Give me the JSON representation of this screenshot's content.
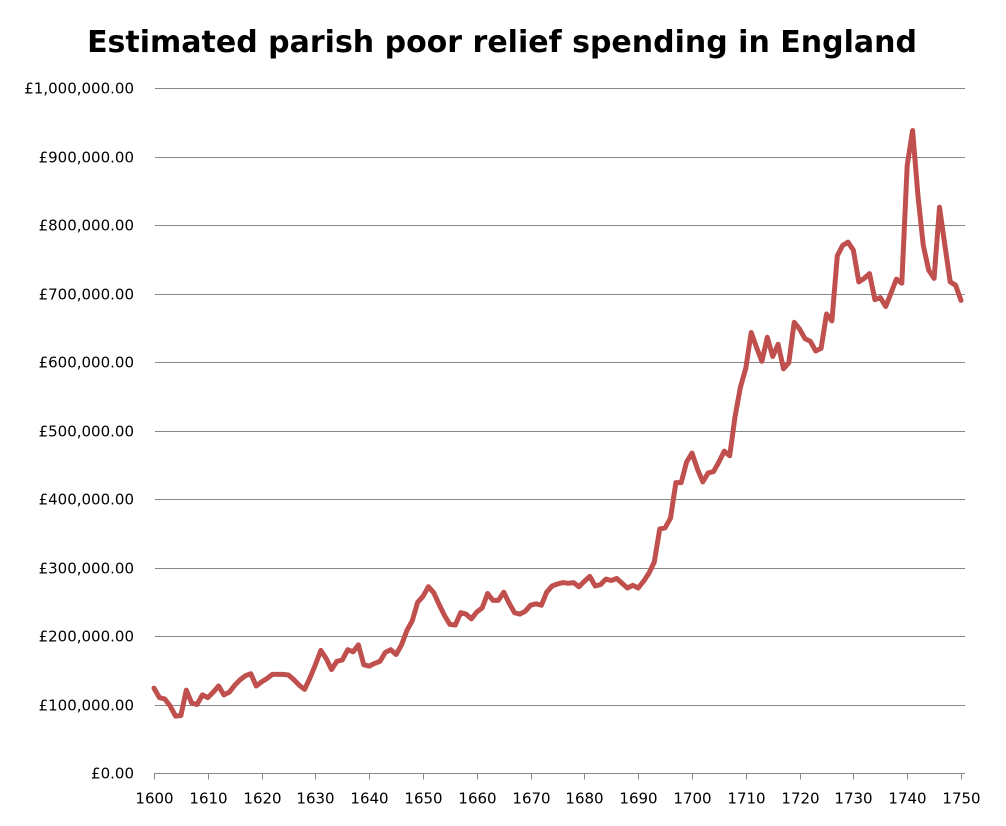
{
  "chart_data": {
    "type": "line",
    "title": "Estimated parish poor relief spending in England",
    "xlabel": "",
    "ylabel": "",
    "xlim": [
      1600,
      1750
    ],
    "ylim": [
      0,
      1000000
    ],
    "grid": true,
    "legend": "none",
    "x_ticks": [
      1600,
      1610,
      1620,
      1630,
      1640,
      1650,
      1660,
      1670,
      1680,
      1690,
      1700,
      1710,
      1720,
      1730,
      1740,
      1750
    ],
    "x_tick_labels": [
      "1600",
      "1610",
      "1620",
      "1630",
      "1640",
      "1650",
      "1660",
      "1670",
      "1680",
      "1690",
      "1700",
      "1710",
      "1720",
      "1730",
      "1740",
      "1750"
    ],
    "y_ticks": [
      0,
      100000,
      200000,
      300000,
      400000,
      500000,
      600000,
      700000,
      800000,
      900000,
      1000000
    ],
    "y_tick_labels": [
      "£0.00",
      "£100,000.00",
      "£200,000.00",
      "£300,000.00",
      "£400,000.00",
      "£500,000.00",
      "£600,000.00",
      "£700,000.00",
      "£800,000.00",
      "£900,000.00",
      "£1,000,000.00"
    ],
    "series": [
      {
        "name": "Poor relief spending",
        "color": "#C0504D",
        "x": [
          1600,
          1601,
          1602,
          1603,
          1604,
          1605,
          1606,
          1607,
          1608,
          1609,
          1610,
          1611,
          1612,
          1613,
          1614,
          1615,
          1616,
          1617,
          1618,
          1619,
          1620,
          1621,
          1622,
          1623,
          1624,
          1625,
          1626,
          1627,
          1628,
          1629,
          1630,
          1631,
          1632,
          1633,
          1634,
          1635,
          1636,
          1637,
          1638,
          1639,
          1640,
          1641,
          1642,
          1643,
          1644,
          1645,
          1646,
          1647,
          1648,
          1649,
          1650,
          1651,
          1652,
          1653,
          1654,
          1655,
          1656,
          1657,
          1658,
          1659,
          1660,
          1661,
          1662,
          1663,
          1664,
          1665,
          1666,
          1667,
          1668,
          1669,
          1670,
          1671,
          1672,
          1673,
          1674,
          1675,
          1676,
          1677,
          1678,
          1679,
          1680,
          1681,
          1682,
          1683,
          1684,
          1685,
          1686,
          1687,
          1688,
          1689,
          1690,
          1691,
          1692,
          1693,
          1694,
          1695,
          1696,
          1697,
          1698,
          1699,
          1700,
          1701,
          1702,
          1703,
          1704,
          1705,
          1706,
          1707,
          1708,
          1709,
          1710,
          1711,
          1712,
          1713,
          1714,
          1715,
          1716,
          1717,
          1718,
          1719,
          1720,
          1721,
          1722,
          1723,
          1724,
          1725,
          1726,
          1727,
          1728,
          1729,
          1730,
          1731,
          1732,
          1733,
          1734,
          1735,
          1736,
          1737,
          1738,
          1739,
          1740,
          1741,
          1742,
          1743,
          1744,
          1745,
          1746,
          1747,
          1748,
          1749,
          1750
        ],
        "values": [
          124000,
          110000,
          108000,
          98000,
          83000,
          84000,
          121000,
          102000,
          100000,
          114000,
          110000,
          118000,
          127000,
          114000,
          118000,
          128000,
          136000,
          142000,
          145000,
          127000,
          133000,
          138000,
          144000,
          144000,
          144000,
          143000,
          136000,
          128000,
          122000,
          139000,
          158000,
          179000,
          167000,
          151000,
          163000,
          165000,
          180000,
          177000,
          187000,
          158000,
          156000,
          160000,
          163000,
          176000,
          180000,
          173000,
          187000,
          208000,
          222000,
          249000,
          258000,
          272000,
          263000,
          246000,
          230000,
          217000,
          216000,
          234000,
          232000,
          225000,
          235000,
          241000,
          262000,
          252000,
          252000,
          264000,
          248000,
          234000,
          232000,
          236000,
          245000,
          247000,
          245000,
          264000,
          273000,
          276000,
          278000,
          277000,
          278000,
          272000,
          280000,
          287000,
          273000,
          275000,
          283000,
          281000,
          284000,
          277000,
          270000,
          274000,
          270000,
          280000,
          292000,
          308000,
          356000,
          358000,
          372000,
          424000,
          424000,
          454000,
          467000,
          444000,
          425000,
          438000,
          440000,
          454000,
          470000,
          463000,
          520000,
          563000,
          591000,
          643000,
          621000,
          601000,
          636000,
          608000,
          626000,
          590000,
          599000,
          658000,
          648000,
          634000,
          630000,
          616000,
          620000,
          670000,
          660000,
          755000,
          770000,
          775000,
          763000,
          717000,
          722000,
          729000,
          691000,
          694000,
          681000,
          701000,
          721000,
          715000,
          887000,
          938000,
          842000,
          770000,
          734000,
          722000,
          826000,
          770000,
          717000,
          712000,
          690000
        ]
      }
    ]
  }
}
